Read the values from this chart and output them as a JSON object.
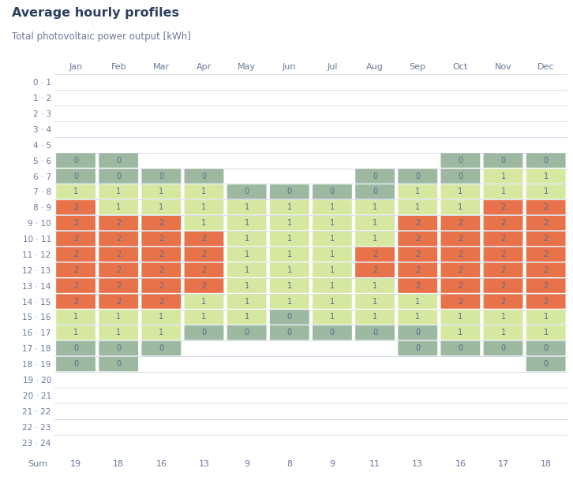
{
  "title": "Average hourly profiles",
  "subtitle": "Total photovoltaic power output [kWh]",
  "months": [
    "Jan",
    "Feb",
    "Mar",
    "Apr",
    "May",
    "Jun",
    "Jul",
    "Aug",
    "Sep",
    "Oct",
    "Nov",
    "Dec"
  ],
  "hours": [
    "0 · 1",
    "1 · 2",
    "2 · 3",
    "3 · 4",
    "4 · 5",
    "5 · 6",
    "6 · 7",
    "7 · 8",
    "8 · 9",
    "9 · 10",
    "10 · 11",
    "11 · 12",
    "12 · 13",
    "13 · 14",
    "14 · 15",
    "15 · 16",
    "16 · 17",
    "17 · 18",
    "18 · 19",
    "19 · 20",
    "20 · 21",
    "21 · 22",
    "22 · 23",
    "23 · 24"
  ],
  "sums": [
    19,
    18,
    16,
    13,
    9,
    8,
    9,
    11,
    13,
    16,
    17,
    18
  ],
  "grid": [
    [
      null,
      null,
      null,
      null,
      null,
      null,
      null,
      null,
      null,
      null,
      null,
      null
    ],
    [
      null,
      null,
      null,
      null,
      null,
      null,
      null,
      null,
      null,
      null,
      null,
      null
    ],
    [
      null,
      null,
      null,
      null,
      null,
      null,
      null,
      null,
      null,
      null,
      null,
      null
    ],
    [
      null,
      null,
      null,
      null,
      null,
      null,
      null,
      null,
      null,
      null,
      null,
      null
    ],
    [
      null,
      null,
      null,
      null,
      null,
      null,
      null,
      null,
      null,
      null,
      null,
      null
    ],
    [
      0,
      0,
      null,
      null,
      null,
      null,
      null,
      null,
      null,
      0,
      0,
      0
    ],
    [
      0,
      0,
      0,
      0,
      null,
      null,
      null,
      0,
      0,
      0,
      1,
      1
    ],
    [
      1,
      1,
      1,
      1,
      0,
      0,
      0,
      0,
      1,
      1,
      1,
      1
    ],
    [
      2,
      1,
      1,
      1,
      1,
      1,
      1,
      1,
      1,
      1,
      2,
      2
    ],
    [
      2,
      2,
      2,
      1,
      1,
      1,
      1,
      1,
      2,
      2,
      2,
      2
    ],
    [
      2,
      2,
      2,
      2,
      1,
      1,
      1,
      1,
      2,
      2,
      2,
      2
    ],
    [
      2,
      2,
      2,
      2,
      1,
      1,
      1,
      2,
      2,
      2,
      2,
      2
    ],
    [
      2,
      2,
      2,
      2,
      1,
      1,
      1,
      2,
      2,
      2,
      2,
      2
    ],
    [
      2,
      2,
      2,
      2,
      1,
      1,
      1,
      1,
      2,
      2,
      2,
      2
    ],
    [
      2,
      2,
      2,
      1,
      1,
      1,
      1,
      1,
      1,
      2,
      2,
      2
    ],
    [
      1,
      1,
      1,
      1,
      1,
      0,
      1,
      1,
      1,
      1,
      1,
      1
    ],
    [
      1,
      1,
      1,
      0,
      0,
      0,
      0,
      0,
      0,
      1,
      1,
      1
    ],
    [
      0,
      0,
      0,
      null,
      null,
      null,
      null,
      null,
      0,
      0,
      0,
      0
    ],
    [
      0,
      0,
      null,
      null,
      null,
      null,
      null,
      null,
      null,
      null,
      null,
      0
    ],
    [
      null,
      null,
      null,
      null,
      null,
      null,
      null,
      null,
      null,
      null,
      null,
      null
    ],
    [
      null,
      null,
      null,
      null,
      null,
      null,
      null,
      null,
      null,
      null,
      null,
      null
    ],
    [
      null,
      null,
      null,
      null,
      null,
      null,
      null,
      null,
      null,
      null,
      null,
      null
    ],
    [
      null,
      null,
      null,
      null,
      null,
      null,
      null,
      null,
      null,
      null,
      null,
      null
    ],
    [
      null,
      null,
      null,
      null,
      null,
      null,
      null,
      null,
      null,
      null,
      null,
      null
    ]
  ],
  "color_none": "#ffffff",
  "color_0": "#9db8a0",
  "color_1": "#d6e8a0",
  "color_2": "#e8724a",
  "line_color": "#d0d8e8",
  "text_color": "#6a7a9a",
  "title_color": "#2c3e60",
  "subtitle_color": "#6a7a9a",
  "background_color": "#ffffff",
  "cell_text_color": "#5a6a8a",
  "sum_label": "Sum",
  "figsize": [
    7.26,
    6.08
  ],
  "dpi": 100
}
